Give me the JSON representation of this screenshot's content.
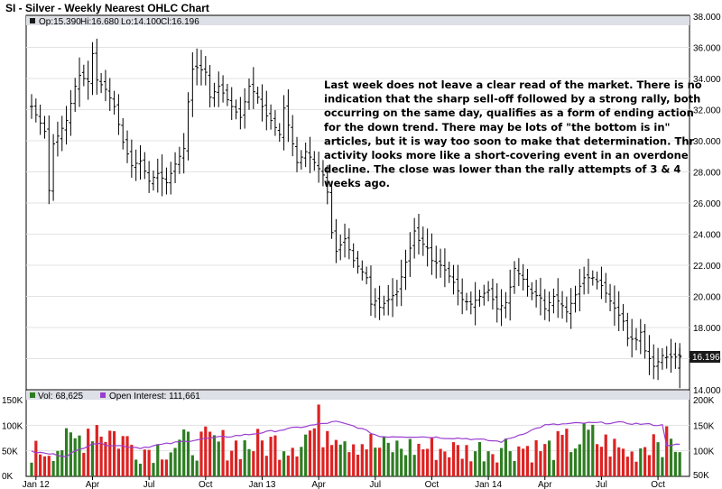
{
  "chart_data": {
    "type": "ohlc",
    "title": "SI - Silver - Weekly Nearest OHLC Chart",
    "header": {
      "op": "Op:15.390",
      "hi": "Hi:16.680",
      "lo": "Lo:14.100",
      "cl": "Cl:16.196"
    },
    "last_price_label": "16.196",
    "price_axis": {
      "ylim": [
        14,
        38
      ],
      "ticks": [
        "38.000",
        "36.000",
        "34.000",
        "32.000",
        "30.000",
        "28.000",
        "26.000",
        "24.000",
        "22.000",
        "20.000",
        "18.000",
        "16.000",
        "14.000"
      ]
    },
    "annotation": [
      "Last week does not leave a clear read of the market.  There is no",
      "indication that the sharp sell-off followed by a strong rally, both",
      "occurring on the same day, qualifies as a form of ending action",
      "for the down trend.   There may be lots of \"the bottom is in\"",
      "articles, but it is way too soon to make that determination.  Thr",
      "activity looks more like a short-covering event in an overdone",
      "decline.  The close was lower than the rally attempts of 3 & 4",
      "weeks ago."
    ],
    "volume_panel": {
      "legend": [
        "Vol: 68,625",
        "Open Interest: 111,661"
      ],
      "left_ticks": [
        "150K",
        "100K",
        "50K",
        "0K"
      ],
      "right_ticks": [
        "200K",
        "150K",
        "100K",
        "50K"
      ],
      "vol_ylim": [
        0,
        150000
      ],
      "oi_ylim": [
        50000,
        200000
      ]
    },
    "x_axis": {
      "labels": [
        "Jan 12",
        "Apr",
        "Jul",
        "Oct",
        "Jan 13",
        "Apr",
        "Jul",
        "Oct",
        "Jan 14",
        "Apr",
        "Jul",
        "Oct"
      ]
    },
    "colors": {
      "up": "#2e7d22",
      "down": "#dd2222",
      "oi": "#9a3ed0",
      "bar": "#000000"
    },
    "weeks": 150,
    "price_anchors": [
      [
        0,
        32.2
      ],
      [
        3,
        30.6
      ],
      [
        4,
        26.8
      ],
      [
        5,
        29.8
      ],
      [
        8,
        31.3
      ],
      [
        10,
        33.5
      ],
      [
        11,
        34.2
      ],
      [
        13,
        33.8
      ],
      [
        14,
        35.6
      ],
      [
        15,
        33.9
      ],
      [
        17,
        33.3
      ],
      [
        19,
        32.2
      ],
      [
        21,
        29.9
      ],
      [
        23,
        28.4
      ],
      [
        25,
        28.7
      ],
      [
        27,
        27.4
      ],
      [
        29,
        27.9
      ],
      [
        31,
        27.3
      ],
      [
        33,
        28.5
      ],
      [
        35,
        29.5
      ],
      [
        36,
        32.5
      ],
      [
        37,
        34.6
      ],
      [
        38,
        34.7
      ],
      [
        40,
        34.4
      ],
      [
        41,
        32.8
      ],
      [
        43,
        33.5
      ],
      [
        46,
        32.2
      ],
      [
        48,
        31.5
      ],
      [
        50,
        33.5
      ],
      [
        52,
        32.8
      ],
      [
        54,
        31.6
      ],
      [
        55,
        31.3
      ],
      [
        57,
        30.4
      ],
      [
        58,
        32.1
      ],
      [
        59,
        31.0
      ],
      [
        61,
        28.6
      ],
      [
        63,
        29.3
      ],
      [
        65,
        28.6
      ],
      [
        67,
        27.8
      ],
      [
        68,
        26.7
      ],
      [
        69,
        24.1
      ],
      [
        70,
        22.9
      ],
      [
        71,
        23.3
      ],
      [
        72,
        23.7
      ],
      [
        74,
        22.3
      ],
      [
        77,
        21.2
      ],
      [
        78,
        19.5
      ],
      [
        79,
        19.7
      ],
      [
        80,
        19.3
      ],
      [
        82,
        19.8
      ],
      [
        84,
        20.3
      ],
      [
        86,
        22.2
      ],
      [
        87,
        23.1
      ],
      [
        88,
        24.2
      ],
      [
        89,
        23.6
      ],
      [
        91,
        23.1
      ],
      [
        92,
        22.3
      ],
      [
        94,
        22.0
      ],
      [
        95,
        21.7
      ],
      [
        97,
        20.9
      ],
      [
        99,
        19.8
      ],
      [
        101,
        19.5
      ],
      [
        103,
        20.0
      ],
      [
        105,
        20.4
      ],
      [
        107,
        19.2
      ],
      [
        109,
        19.6
      ],
      [
        110,
        20.6
      ],
      [
        111,
        21.8
      ],
      [
        113,
        21.1
      ],
      [
        115,
        20.2
      ],
      [
        117,
        19.9
      ],
      [
        118,
        19.2
      ],
      [
        120,
        20.0
      ],
      [
        122,
        19.4
      ],
      [
        123,
        19.0
      ],
      [
        125,
        20.1
      ],
      [
        127,
        21.2
      ],
      [
        129,
        21.2
      ],
      [
        131,
        20.7
      ],
      [
        133,
        19.7
      ],
      [
        135,
        18.8
      ],
      [
        136,
        18.4
      ],
      [
        137,
        17.3
      ],
      [
        139,
        17.2
      ],
      [
        140,
        17.7
      ],
      [
        141,
        16.5
      ],
      [
        143,
        15.5
      ],
      [
        144,
        15.8
      ],
      [
        145,
        16.2
      ],
      [
        146,
        16.1
      ]
    ],
    "vol_anchors": [
      [
        0,
        50000
      ],
      [
        10,
        70000
      ],
      [
        14,
        113000
      ],
      [
        25,
        55000
      ],
      [
        38,
        68000
      ],
      [
        50,
        65000
      ],
      [
        60,
        72000
      ],
      [
        70,
        120000
      ],
      [
        72,
        88000
      ],
      [
        80,
        58000
      ],
      [
        90,
        60000
      ],
      [
        100,
        52000
      ],
      [
        110,
        64000
      ],
      [
        118,
        55000
      ],
      [
        128,
        80000
      ],
      [
        138,
        45000
      ],
      [
        143,
        85000
      ],
      [
        144,
        97000
      ],
      [
        146,
        68625
      ]
    ],
    "oi_anchors": [
      [
        0,
        98000
      ],
      [
        8,
        90000
      ],
      [
        14,
        115000
      ],
      [
        25,
        106000
      ],
      [
        38,
        122000
      ],
      [
        50,
        132000
      ],
      [
        60,
        144000
      ],
      [
        70,
        157000
      ],
      [
        75,
        146000
      ],
      [
        80,
        128000
      ],
      [
        88,
        128000
      ],
      [
        100,
        124000
      ],
      [
        108,
        118000
      ],
      [
        118,
        150000
      ],
      [
        126,
        154000
      ],
      [
        135,
        155000
      ],
      [
        145,
        150000
      ],
      [
        146,
        111661
      ]
    ]
  }
}
